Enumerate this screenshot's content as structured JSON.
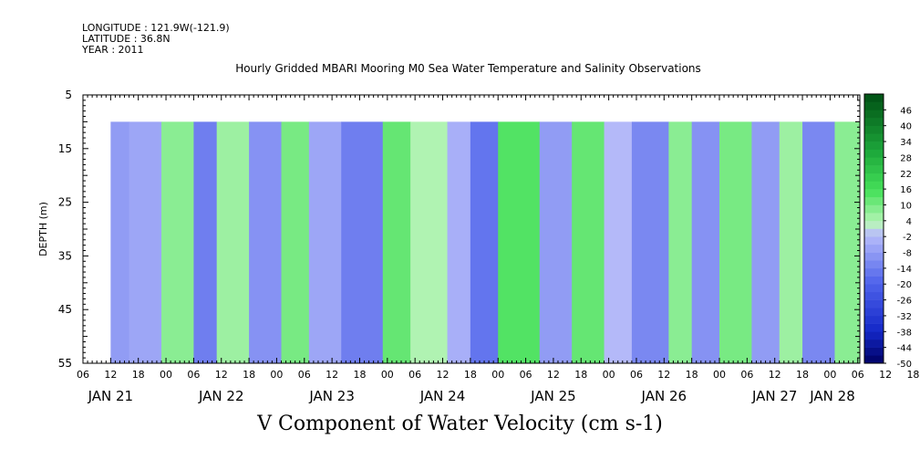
{
  "header": {
    "longitude": "LONGITUDE : 121.9W(-121.9)",
    "latitude": "LATITUDE : 36.8N",
    "year": "YEAR : 2011"
  },
  "chart_data": {
    "type": "heatmap",
    "title": "Hourly Gridded MBARI Mooring M0 Sea Water Temperature and Salinity Observations",
    "variable_label": "V Component of Water Velocity (cm s-1)",
    "ylabel": "DEPTH (m)",
    "y_axis": {
      "min": 5,
      "max": 55,
      "inverted": true,
      "tick_labels": [
        "5",
        "15",
        "25",
        "35",
        "45",
        "55"
      ]
    },
    "x_axis": {
      "hour_tick_labels": [
        "06",
        "12",
        "18",
        "00",
        "06",
        "12",
        "18",
        "00",
        "06",
        "12",
        "18",
        "00",
        "06",
        "12",
        "18",
        "00",
        "06",
        "12",
        "18",
        "00",
        "06",
        "12",
        "18",
        "00",
        "06",
        "12",
        "18",
        "00",
        "06",
        "12",
        "18",
        "00",
        "06"
      ],
      "day_labels": [
        "JAN 21",
        "JAN 22",
        "JAN 23",
        "JAN 24",
        "JAN 25",
        "JAN 26",
        "JAN 27",
        "JAN 28"
      ]
    },
    "data_extent": {
      "depth_min": 10,
      "depth_max": 55
    },
    "colorbar": {
      "levels": [
        "46",
        "40",
        "34",
        "28",
        "22",
        "16",
        "10",
        "4",
        "-2",
        "-8",
        "-14",
        "-20",
        "-26",
        "-32",
        "-38",
        "-44",
        "-50"
      ],
      "range": [
        -50,
        52
      ],
      "step": 3
    },
    "bands": [
      {
        "start": "JAN 21 12:00",
        "end": "JAN 21 16:00",
        "v": -8
      },
      {
        "start": "JAN 21 16:00",
        "end": "JAN 21 23:00",
        "v": -6
      },
      {
        "start": "JAN 21 23:00",
        "end": "JAN 22 06:00",
        "v": 8
      },
      {
        "start": "JAN 22 06:00",
        "end": "JAN 22 11:00",
        "v": -14
      },
      {
        "start": "JAN 22 11:00",
        "end": "JAN 22 18:00",
        "v": 6
      },
      {
        "start": "JAN 22 18:00",
        "end": "JAN 23 01:00",
        "v": -10
      },
      {
        "start": "JAN 23 01:00",
        "end": "JAN 23 07:00",
        "v": 10
      },
      {
        "start": "JAN 23 07:00",
        "end": "JAN 23 14:00",
        "v": -6
      },
      {
        "start": "JAN 23 14:00",
        "end": "JAN 23 23:00",
        "v": -14
      },
      {
        "start": "JAN 23 23:00",
        "end": "JAN 24 05:00",
        "v": 12
      },
      {
        "start": "JAN 24 05:00",
        "end": "JAN 24 13:00",
        "v": 4
      },
      {
        "start": "JAN 24 13:00",
        "end": "JAN 24 18:00",
        "v": -4
      },
      {
        "start": "JAN 24 18:00",
        "end": "JAN 25 00:00",
        "v": -16
      },
      {
        "start": "JAN 25 00:00",
        "end": "JAN 25 09:00",
        "v": 14
      },
      {
        "start": "JAN 25 09:00",
        "end": "JAN 25 16:00",
        "v": -8
      },
      {
        "start": "JAN 25 16:00",
        "end": "JAN 25 23:00",
        "v": 12
      },
      {
        "start": "JAN 25 23:00",
        "end": "JAN 26 05:00",
        "v": -2
      },
      {
        "start": "JAN 26 05:00",
        "end": "JAN 26 13:00",
        "v": -12
      },
      {
        "start": "JAN 26 13:00",
        "end": "JAN 26 18:00",
        "v": 8
      },
      {
        "start": "JAN 26 18:00",
        "end": "JAN 27 00:00",
        "v": -10
      },
      {
        "start": "JAN 27 00:00",
        "end": "JAN 27 07:00",
        "v": 10
      },
      {
        "start": "JAN 27 07:00",
        "end": "JAN 27 13:00",
        "v": -8
      },
      {
        "start": "JAN 27 13:00",
        "end": "JAN 27 18:00",
        "v": 6
      },
      {
        "start": "JAN 27 18:00",
        "end": "JAN 28 01:00",
        "v": -12
      },
      {
        "start": "JAN 28 01:00",
        "end": "JAN 28 08:00",
        "v": 8
      }
    ]
  },
  "colors": {
    "background": "#ffffff",
    "axis": "#000000"
  }
}
